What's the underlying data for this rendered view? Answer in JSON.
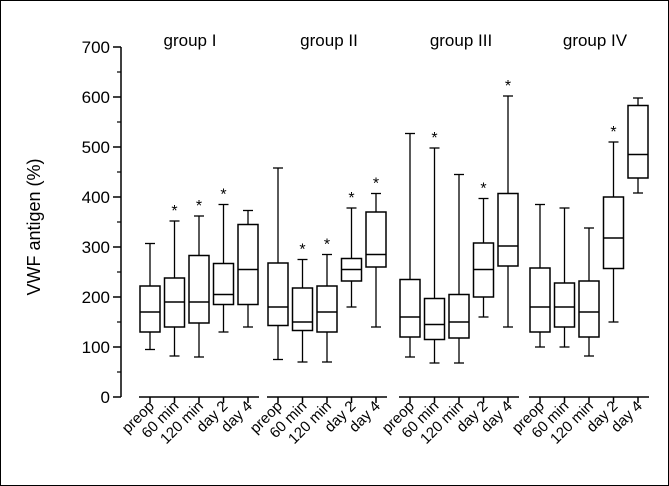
{
  "chart_data": {
    "type": "boxplot",
    "ylabel": "VWF antigen (%)",
    "ylim": [
      0,
      700
    ],
    "yticks": [
      0,
      100,
      200,
      300,
      400,
      500,
      600,
      700
    ],
    "categories": [
      "preop",
      "60 min",
      "120 min",
      "day 2",
      "day 4"
    ],
    "groups": [
      {
        "name": "group I",
        "boxes": [
          {
            "category": "preop",
            "min": 95,
            "q1": 130,
            "median": 170,
            "q3": 222,
            "max": 307,
            "star": false
          },
          {
            "category": "60 min",
            "min": 82,
            "q1": 140,
            "median": 190,
            "q3": 238,
            "max": 352,
            "star": true
          },
          {
            "category": "120 min",
            "min": 80,
            "q1": 148,
            "median": 190,
            "q3": 283,
            "max": 362,
            "star": true
          },
          {
            "category": "day 2",
            "min": 130,
            "q1": 185,
            "median": 205,
            "q3": 267,
            "max": 385,
            "star": true
          },
          {
            "category": "day 4",
            "min": 140,
            "q1": 185,
            "median": 255,
            "q3": 345,
            "max": 373,
            "star": false
          }
        ]
      },
      {
        "name": "group  II",
        "boxes": [
          {
            "category": "preop",
            "min": 75,
            "q1": 143,
            "median": 180,
            "q3": 268,
            "max": 458,
            "star": false
          },
          {
            "category": "60 min",
            "min": 70,
            "q1": 133,
            "median": 150,
            "q3": 218,
            "max": 275,
            "star": true
          },
          {
            "category": "120 min",
            "min": 70,
            "q1": 130,
            "median": 170,
            "q3": 222,
            "max": 285,
            "star": true
          },
          {
            "category": "day 2",
            "min": 180,
            "q1": 232,
            "median": 255,
            "q3": 277,
            "max": 378,
            "star": true
          },
          {
            "category": "day 4",
            "min": 140,
            "q1": 260,
            "median": 285,
            "q3": 370,
            "max": 407,
            "star": true
          }
        ]
      },
      {
        "name": "group III",
        "boxes": [
          {
            "category": "preop",
            "min": 80,
            "q1": 120,
            "median": 160,
            "q3": 235,
            "max": 527,
            "star": false
          },
          {
            "category": "60 min",
            "min": 68,
            "q1": 115,
            "median": 145,
            "q3": 197,
            "max": 498,
            "star": true
          },
          {
            "category": "120 min",
            "min": 68,
            "q1": 118,
            "median": 150,
            "q3": 205,
            "max": 445,
            "star": false
          },
          {
            "category": "day 2",
            "min": 160,
            "q1": 200,
            "median": 255,
            "q3": 308,
            "max": 397,
            "star": true
          },
          {
            "category": "day 4",
            "min": 140,
            "q1": 262,
            "median": 302,
            "q3": 407,
            "max": 602,
            "star": true
          }
        ]
      },
      {
        "name": "group IV",
        "boxes": [
          {
            "category": "preop",
            "min": 100,
            "q1": 130,
            "median": 180,
            "q3": 258,
            "max": 385,
            "star": false
          },
          {
            "category": "60 min",
            "min": 100,
            "q1": 140,
            "median": 180,
            "q3": 228,
            "max": 378,
            "star": false
          },
          {
            "category": "120 min",
            "min": 82,
            "q1": 120,
            "median": 170,
            "q3": 232,
            "max": 338,
            "star": false
          },
          {
            "category": "day 2",
            "min": 150,
            "q1": 257,
            "median": 318,
            "q3": 400,
            "max": 510,
            "star": true
          },
          {
            "category": "day 4",
            "min": 408,
            "q1": 438,
            "median": 485,
            "q3": 583,
            "max": 598,
            "star": false
          }
        ]
      }
    ],
    "significance_marker": "*",
    "grid": false,
    "legend": "none"
  }
}
